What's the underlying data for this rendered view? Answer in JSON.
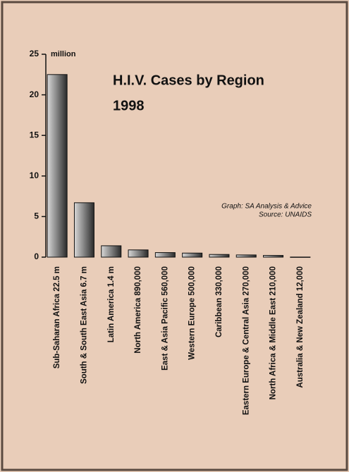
{
  "chart_data": {
    "type": "bar",
    "title": "H.I.V. Cases by Region",
    "subtitle": "1998",
    "y_unit": "million",
    "annotations": [
      "Graph: SA Analysis  & Advice",
      "Source: UNAIDS"
    ],
    "categories": [
      "Sub-Saharan Africa 22.5 m",
      "South & South East Asia 6.7 m",
      "Latin America 1.4 m",
      "North America 890,000",
      "East & Asia Pacific 560,000",
      "Western Europe 500,000",
      "Caribbean 330,000",
      "Eastern Europe & Central Asia 270,000",
      "North Africa & Middle East 210,000",
      "Australia & New Zealand 12,000"
    ],
    "values": [
      22.5,
      6.7,
      1.4,
      0.89,
      0.56,
      0.5,
      0.33,
      0.27,
      0.21,
      0.012
    ],
    "color": "#555555",
    "ylim": [
      0,
      25
    ],
    "yticks": [
      0,
      5,
      10,
      15,
      20,
      25
    ],
    "grid": false
  }
}
